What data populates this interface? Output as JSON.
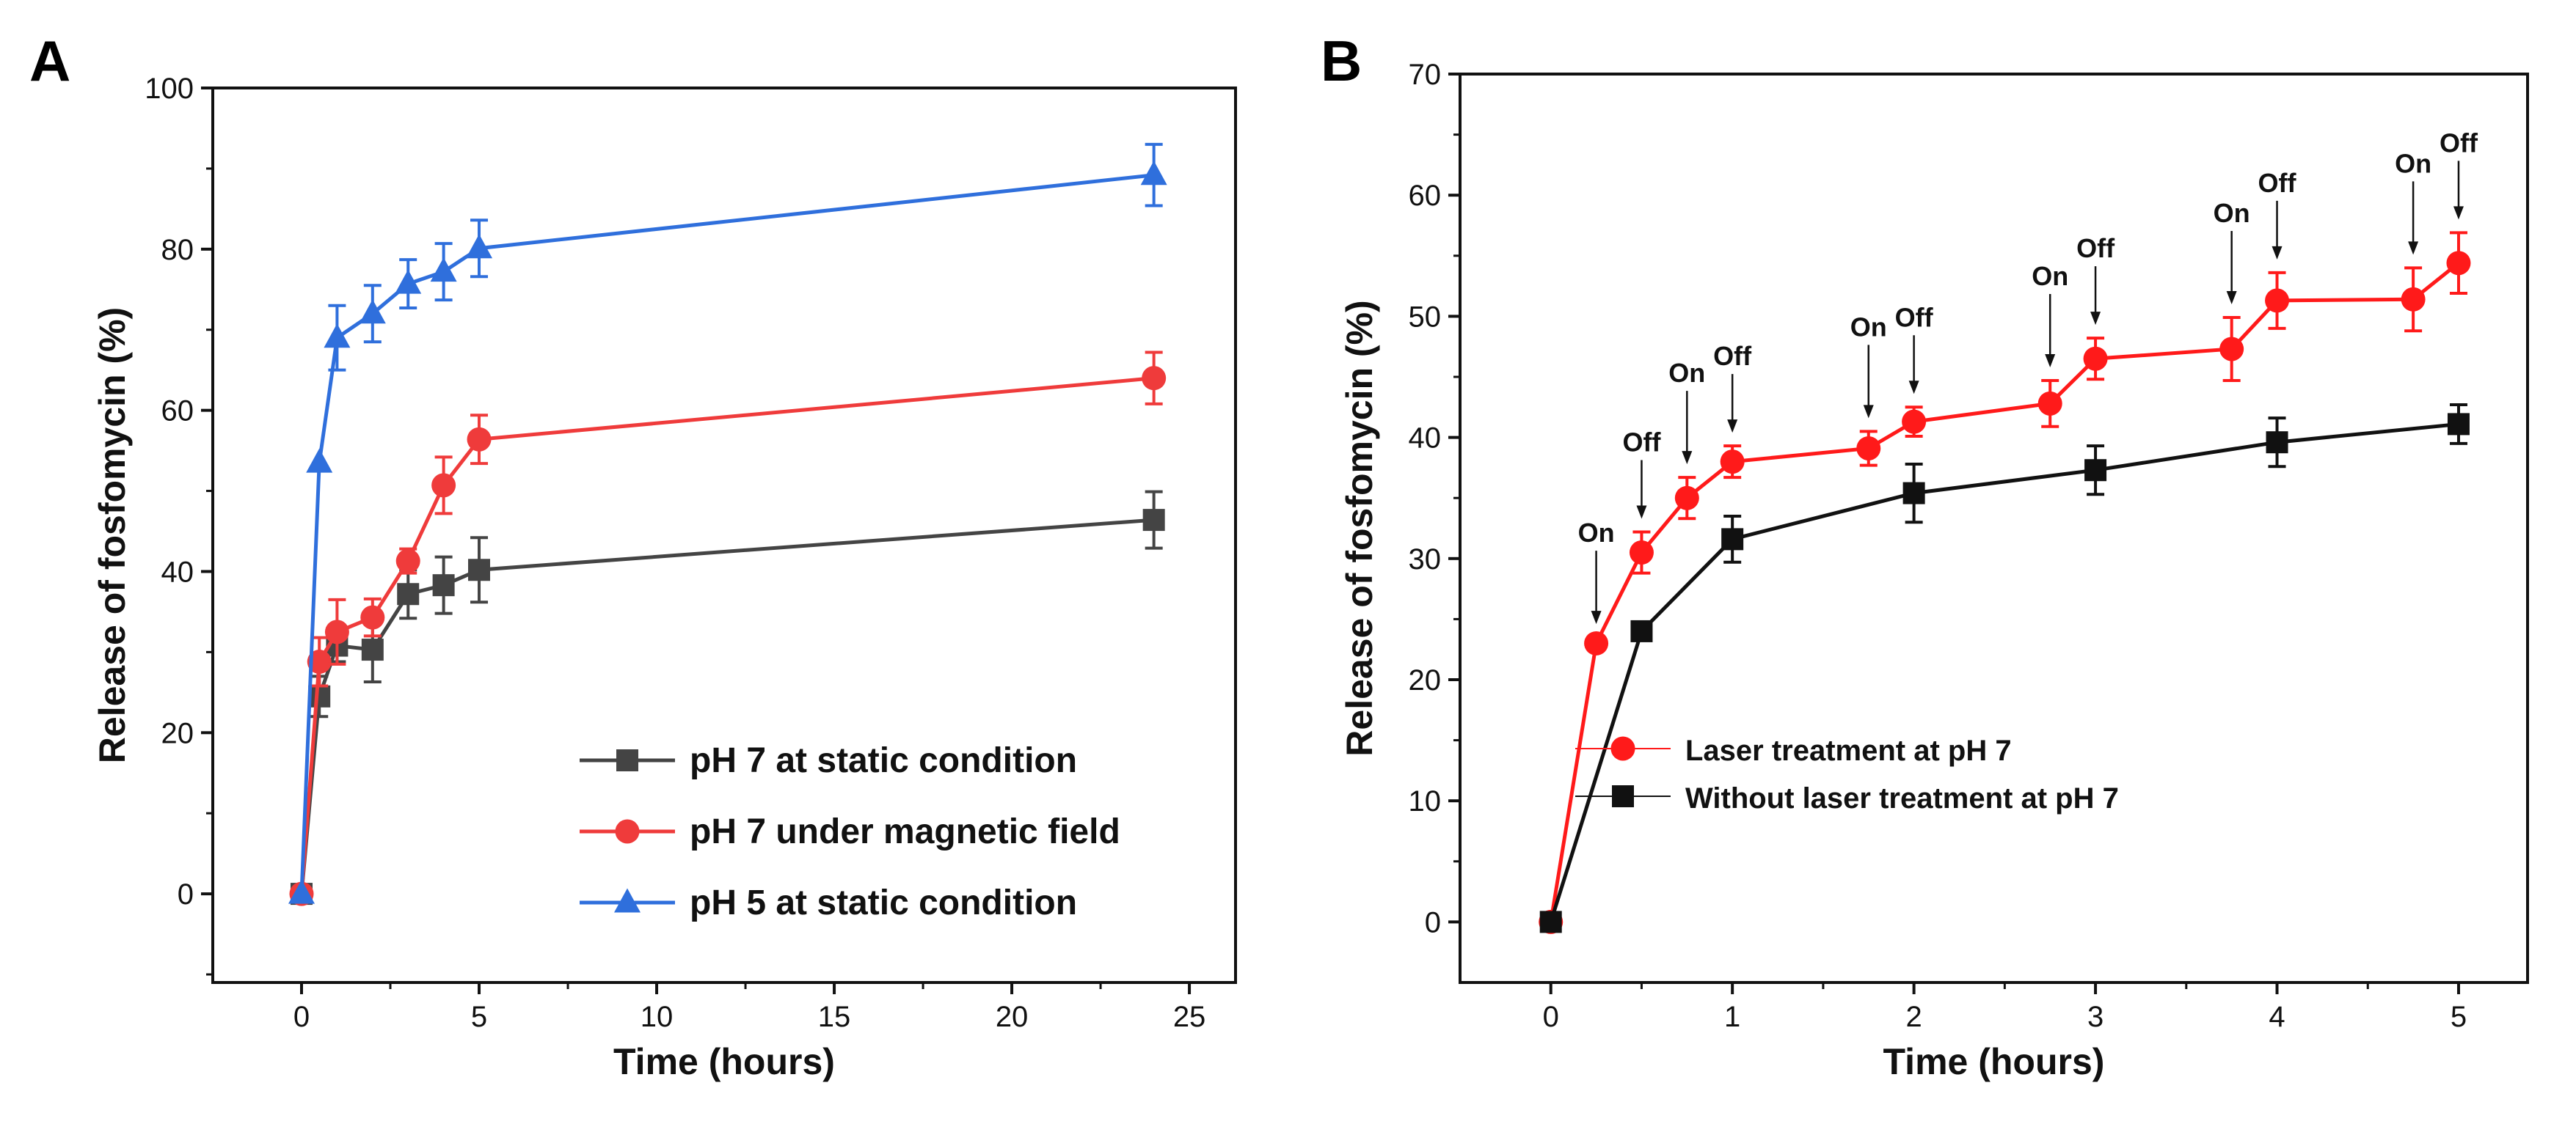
{
  "colors": {
    "black": "#444444",
    "red": "#ef3b3b",
    "blue": "#2f6fdc",
    "redB": "#ff1a1a",
    "blackB": "#111111"
  },
  "chart_data": [
    {
      "panel": "A",
      "type": "line",
      "xlabel": "Time (hours)",
      "ylabel": "Release of fosfomycin (%)",
      "xlim": [
        -2.5,
        26.3
      ],
      "ylim": [
        -11,
        100
      ],
      "xticks": [
        0,
        5,
        10,
        15,
        20,
        25
      ],
      "yticks": [
        0,
        20,
        40,
        60,
        80,
        100
      ],
      "legend_position": "bottom-right",
      "x": [
        0,
        0.5,
        1,
        2,
        3,
        4,
        5,
        24
      ],
      "series": [
        {
          "name": "pH 7 at static condition",
          "marker": "square",
          "color": "#444444",
          "values": [
            0,
            24.5,
            30.8,
            30.3,
            37.2,
            38.3,
            40.2,
            46.4
          ],
          "errors": [
            0,
            2.5,
            2,
            4,
            3,
            3.5,
            4,
            3.5
          ]
        },
        {
          "name": "pH 7 under magnetic field",
          "marker": "circle",
          "color": "#ef3b3b",
          "values": [
            0,
            28.8,
            32.5,
            34.3,
            41.3,
            50.7,
            56.4,
            64
          ],
          "errors": [
            0,
            3,
            4,
            2.3,
            1.5,
            3.5,
            3,
            3.2
          ]
        },
        {
          "name": "pH 5 at static condition",
          "marker": "triangle",
          "color": "#2f6fdc",
          "values": [
            0,
            53.5,
            69,
            72,
            75.7,
            77.2,
            80.1,
            89.2
          ],
          "errors": [
            0,
            0,
            4,
            3.5,
            3,
            3.5,
            3.5,
            3.8
          ]
        }
      ]
    },
    {
      "panel": "B",
      "type": "line",
      "xlabel": "Time (hours)",
      "ylabel": "Release of fosfomycin (%)",
      "xlim": [
        -0.5,
        5.38
      ],
      "ylim": [
        -5,
        70
      ],
      "xticks": [
        0,
        1,
        2,
        3,
        4,
        5
      ],
      "yticks": [
        0,
        10,
        20,
        30,
        40,
        50,
        60,
        70
      ],
      "legend_position": "bottom-right",
      "series": [
        {
          "name": "Laser treatment at pH 7",
          "marker": "circle",
          "color": "#ff1a1a",
          "x": [
            0,
            0.25,
            0.5,
            0.75,
            1,
            1.75,
            2,
            2.75,
            3,
            3.75,
            4,
            4.75,
            5
          ],
          "values": [
            0,
            23,
            30.5,
            35,
            38,
            39.1,
            41.3,
            42.8,
            46.5,
            47.3,
            51.3,
            51.4,
            54.4
          ],
          "errors": [
            0,
            0.5,
            1.7,
            1.7,
            1.3,
            1.4,
            1.2,
            1.9,
            1.7,
            2.6,
            2.3,
            2.6,
            2.5
          ]
        },
        {
          "name": "Without laser treatment at pH 7",
          "marker": "square",
          "color": "#111111",
          "x": [
            0,
            0.5,
            1,
            2,
            3,
            4,
            5
          ],
          "values": [
            0,
            24,
            31.6,
            35.4,
            37.3,
            39.6,
            41.1
          ],
          "errors": [
            0,
            0.6,
            1.9,
            2.4,
            2,
            2,
            1.6
          ]
        }
      ],
      "annotations": [
        {
          "x": 0.25,
          "text": "On"
        },
        {
          "x": 0.5,
          "text": "Off"
        },
        {
          "x": 0.75,
          "text": "On"
        },
        {
          "x": 1,
          "text": "Off"
        },
        {
          "x": 1.75,
          "text": "On"
        },
        {
          "x": 2,
          "text": "Off"
        },
        {
          "x": 2.75,
          "text": "On"
        },
        {
          "x": 3,
          "text": "Off"
        },
        {
          "x": 3.75,
          "text": "On"
        },
        {
          "x": 4,
          "text": "Off"
        },
        {
          "x": 4.75,
          "text": "On"
        },
        {
          "x": 5,
          "text": "Off"
        }
      ]
    }
  ]
}
